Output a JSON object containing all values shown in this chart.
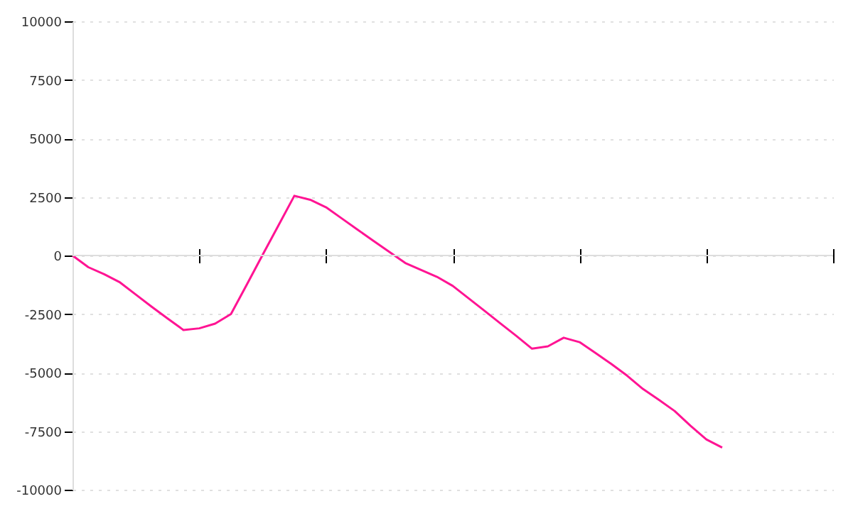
{
  "chart_data": {
    "type": "line",
    "categories": [
      null,
      null,
      null,
      null,
      null,
      null,
      null,
      null,
      null,
      null,
      null,
      null,
      null,
      null,
      null,
      null,
      null,
      null,
      null,
      null,
      null,
      null,
      null,
      null,
      null,
      null,
      null,
      null,
      null,
      null,
      null,
      null,
      null,
      null,
      null,
      null,
      null,
      null,
      null,
      null,
      null,
      null,
      null,
      null,
      null,
      null,
      null,
      null,
      null
    ],
    "series": [
      {
        "color": "#ff1493",
        "values": [
          0,
          -500,
          -800,
          -1150,
          -1670,
          -2190,
          -2690,
          -3180,
          -3110,
          -2910,
          -2500,
          -1240,
          30,
          1290,
          2550,
          2380,
          2060,
          1580,
          1100,
          620,
          150,
          -320,
          -620,
          -910,
          -1300,
          -1830,
          -2360,
          -2900,
          -3430,
          -3980,
          -3880,
          -3510,
          -3700,
          -4160,
          -4630,
          -5130,
          -5700,
          -6160,
          -6640,
          -7270,
          -7850,
          -8200,
          null,
          null,
          null,
          null,
          null,
          null,
          null
        ]
      }
    ],
    "ylim": [
      -10000,
      10000
    ],
    "yticks": [
      -10000,
      -7500,
      -5000,
      -2500,
      0,
      2500,
      5000,
      7500,
      10000
    ],
    "grid": "y",
    "tick_labels": "y",
    "marker": "none",
    "line_style": "solid"
  }
}
